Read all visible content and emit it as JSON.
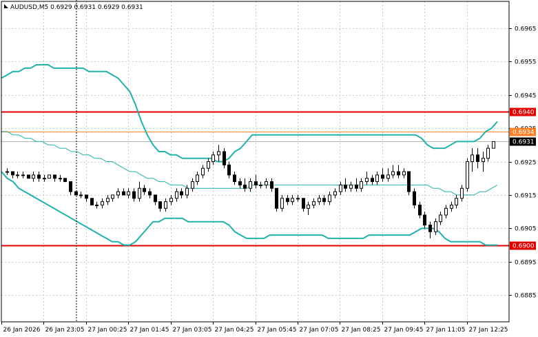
{
  "chart_data": {
    "type": "candlestick",
    "title": "AUDUSD,M5 0.6929 0.6931 0.6929 0.6931",
    "symbol": "AUDUSD",
    "timeframe": "M5",
    "ohlc_header": {
      "open": 0.6929,
      "high": 0.6931,
      "low": 0.6929,
      "close": 0.6931
    },
    "ylim": [
      0.6877,
      0.6973
    ],
    "y_ticks": [
      "0.6965",
      "0.6955",
      "0.6945",
      "0.6935",
      "0.6925",
      "0.6915",
      "0.6905",
      "0.6895",
      "0.6885"
    ],
    "x_ticks": [
      "26 Jan 2026",
      "26 Jan 23:05",
      "27 Jan 00:25",
      "27 Jan 01:45",
      "27 Jan 03:05",
      "27 Jan 04:25",
      "27 Jan 05:45",
      "27 Jan 07:05",
      "27 Jan 08:25",
      "27 Jan 09:45",
      "27 Jan 11:05",
      "27 Jan 12:25"
    ],
    "grid": true,
    "levels": [
      {
        "value": 0.694,
        "label": "0.6940",
        "color": "#e00000"
      },
      {
        "value": 0.6934,
        "label": "0.6934",
        "color": "#ff7f27"
      },
      {
        "value": 0.69,
        "label": "0.6900",
        "color": "#e00000"
      }
    ],
    "current_price": {
      "value": 0.6931,
      "label": "0.6931"
    },
    "bollinger": {
      "color": "#20b2aa",
      "upper": [
        0.695,
        0.6951,
        0.6952,
        0.6952,
        0.6953,
        0.6953,
        0.6954,
        0.6954,
        0.6954,
        0.6953,
        0.6953,
        0.6953,
        0.6953,
        0.6953,
        0.6953,
        0.6952,
        0.6952,
        0.6952,
        0.6952,
        0.6951,
        0.695,
        0.6948,
        0.6946,
        0.6942,
        0.6937,
        0.6933,
        0.693,
        0.6928,
        0.6928,
        0.6927,
        0.6927,
        0.6926,
        0.6926,
        0.6926,
        0.6926,
        0.6926,
        0.6926,
        0.6925,
        0.6925,
        0.6926,
        0.6928,
        0.6929,
        0.6931,
        0.6933,
        0.6933,
        0.6933,
        0.6933,
        0.6933,
        0.6933,
        0.6933,
        0.6933,
        0.6933,
        0.6933,
        0.6933,
        0.6933,
        0.6933,
        0.6933,
        0.6933,
        0.6933,
        0.6933,
        0.6933,
        0.6933,
        0.6933,
        0.6933,
        0.6933,
        0.6933,
        0.6933,
        0.6933,
        0.6933,
        0.6933,
        0.6933,
        0.6933,
        0.6932,
        0.693,
        0.6929,
        0.6929,
        0.6929,
        0.693,
        0.6931,
        0.6931,
        0.6931,
        0.6931,
        0.6932,
        0.6934,
        0.6935,
        0.6937
      ],
      "middle": [
        0.6934,
        0.6934,
        0.6933,
        0.6933,
        0.6932,
        0.6932,
        0.6931,
        0.6931,
        0.693,
        0.693,
        0.6929,
        0.6929,
        0.6928,
        0.6928,
        0.6927,
        0.6927,
        0.6926,
        0.6926,
        0.6925,
        0.6925,
        0.6924,
        0.6923,
        0.6922,
        0.6922,
        0.6921,
        0.692,
        0.692,
        0.6919,
        0.6919,
        0.6918,
        0.6918,
        0.6918,
        0.6917,
        0.6917,
        0.6917,
        0.6917,
        0.6917,
        0.6917,
        0.6917,
        0.6917,
        0.6917,
        0.6917,
        0.6917,
        0.6918,
        0.6918,
        0.6918,
        0.6918,
        0.6918,
        0.6918,
        0.6918,
        0.6918,
        0.6918,
        0.6918,
        0.6918,
        0.6918,
        0.6918,
        0.6918,
        0.6918,
        0.6918,
        0.6918,
        0.6918,
        0.6918,
        0.6918,
        0.6918,
        0.6918,
        0.6918,
        0.6918,
        0.6918,
        0.6918,
        0.6918,
        0.6918,
        0.6918,
        0.6918,
        0.6918,
        0.6917,
        0.6917,
        0.6916,
        0.6916,
        0.6915,
        0.6915,
        0.6915,
        0.6915,
        0.6916,
        0.6916,
        0.6917,
        0.6918
      ],
      "lower": [
        0.6922,
        0.692,
        0.6919,
        0.6917,
        0.6916,
        0.6915,
        0.6914,
        0.6913,
        0.6912,
        0.6911,
        0.691,
        0.6909,
        0.6908,
        0.6907,
        0.6906,
        0.6905,
        0.6904,
        0.6903,
        0.6902,
        0.6901,
        0.6901,
        0.69,
        0.69,
        0.6901,
        0.6903,
        0.6905,
        0.6907,
        0.6907,
        0.6908,
        0.6908,
        0.6908,
        0.6908,
        0.6907,
        0.6907,
        0.6907,
        0.6907,
        0.6907,
        0.6907,
        0.6907,
        0.6906,
        0.6904,
        0.6903,
        0.6902,
        0.6902,
        0.6902,
        0.6902,
        0.6903,
        0.6903,
        0.6903,
        0.6903,
        0.6903,
        0.6903,
        0.6903,
        0.6903,
        0.6903,
        0.6903,
        0.6902,
        0.6902,
        0.6902,
        0.6902,
        0.6902,
        0.6902,
        0.6902,
        0.6903,
        0.6903,
        0.6903,
        0.6903,
        0.6903,
        0.6903,
        0.6903,
        0.6903,
        0.6904,
        0.6905,
        0.6905,
        0.6905,
        0.6904,
        0.6902,
        0.6901,
        0.6901,
        0.6901,
        0.6901,
        0.6901,
        0.6901,
        0.69,
        0.69,
        0.69
      ]
    },
    "candles": [
      [
        0.6922,
        0.6923,
        0.6921,
        0.6922
      ],
      [
        0.6922,
        0.6922,
        0.692,
        0.6921
      ],
      [
        0.6921,
        0.6922,
        0.692,
        0.6921
      ],
      [
        0.6921,
        0.6922,
        0.692,
        0.6921
      ],
      [
        0.6921,
        0.6921,
        0.692,
        0.692
      ],
      [
        0.692,
        0.6922,
        0.6919,
        0.6921
      ],
      [
        0.6921,
        0.6922,
        0.6919,
        0.692
      ],
      [
        0.692,
        0.6921,
        0.6919,
        0.692
      ],
      [
        0.692,
        0.6921,
        0.692,
        0.6921
      ],
      [
        0.6921,
        0.6921,
        0.6919,
        0.692
      ],
      [
        0.692,
        0.6921,
        0.6919,
        0.692
      ],
      [
        0.692,
        0.692,
        0.6919,
        0.6919
      ],
      [
        0.6919,
        0.6919,
        0.6915,
        0.6916
      ],
      [
        0.6916,
        0.6916,
        0.6915,
        0.6915
      ],
      [
        0.6915,
        0.6916,
        0.6914,
        0.6915
      ],
      [
        0.6915,
        0.6915,
        0.6913,
        0.6914
      ],
      [
        0.6914,
        0.6914,
        0.6912,
        0.6912
      ],
      [
        0.6912,
        0.6913,
        0.6911,
        0.6912
      ],
      [
        0.6912,
        0.6914,
        0.6911,
        0.6913
      ],
      [
        0.6913,
        0.6915,
        0.6912,
        0.6914
      ],
      [
        0.6914,
        0.6915,
        0.6913,
        0.6915
      ],
      [
        0.6915,
        0.6917,
        0.6914,
        0.6916
      ],
      [
        0.6916,
        0.6917,
        0.6915,
        0.6915
      ],
      [
        0.6915,
        0.6917,
        0.6914,
        0.6916
      ],
      [
        0.6916,
        0.6917,
        0.6913,
        0.6914
      ],
      [
        0.6914,
        0.6919,
        0.6913,
        0.6917
      ],
      [
        0.6917,
        0.6918,
        0.6915,
        0.6916
      ],
      [
        0.6916,
        0.6917,
        0.6914,
        0.6915
      ],
      [
        0.6915,
        0.6915,
        0.6912,
        0.6913
      ],
      [
        0.6913,
        0.6913,
        0.691,
        0.6911
      ],
      [
        0.6911,
        0.6914,
        0.691,
        0.6913
      ],
      [
        0.6913,
        0.6915,
        0.6912,
        0.6914
      ],
      [
        0.6914,
        0.6917,
        0.6913,
        0.6916
      ],
      [
        0.6916,
        0.6917,
        0.6914,
        0.6915
      ],
      [
        0.6915,
        0.6918,
        0.6914,
        0.6917
      ],
      [
        0.6917,
        0.692,
        0.6916,
        0.6919
      ],
      [
        0.6919,
        0.6922,
        0.6918,
        0.6921
      ],
      [
        0.6921,
        0.6924,
        0.692,
        0.6923
      ],
      [
        0.6923,
        0.6926,
        0.6922,
        0.6925
      ],
      [
        0.6925,
        0.6928,
        0.6924,
        0.6927
      ],
      [
        0.6927,
        0.693,
        0.6925,
        0.6928
      ],
      [
        0.6928,
        0.6929,
        0.6923,
        0.6924
      ],
      [
        0.6924,
        0.6925,
        0.692,
        0.6921
      ],
      [
        0.6921,
        0.6922,
        0.6918,
        0.6919
      ],
      [
        0.6919,
        0.692,
        0.6917,
        0.6918
      ],
      [
        0.6918,
        0.692,
        0.6916,
        0.6917
      ],
      [
        0.6917,
        0.692,
        0.6916,
        0.6919
      ],
      [
        0.6919,
        0.6921,
        0.6917,
        0.6918
      ],
      [
        0.6918,
        0.6919,
        0.6917,
        0.6918
      ],
      [
        0.6918,
        0.692,
        0.6917,
        0.6919
      ],
      [
        0.6919,
        0.692,
        0.6916,
        0.6917
      ],
      [
        0.6917,
        0.6917,
        0.691,
        0.6911
      ],
      [
        0.6911,
        0.6915,
        0.691,
        0.6914
      ],
      [
        0.6914,
        0.6915,
        0.6912,
        0.6913
      ],
      [
        0.6913,
        0.6915,
        0.6912,
        0.6914
      ],
      [
        0.6914,
        0.6915,
        0.6913,
        0.6914
      ],
      [
        0.6914,
        0.6914,
        0.691,
        0.6911
      ],
      [
        0.6911,
        0.6913,
        0.6909,
        0.6912
      ],
      [
        0.6912,
        0.6914,
        0.6911,
        0.6913
      ],
      [
        0.6913,
        0.6915,
        0.6912,
        0.6914
      ],
      [
        0.6914,
        0.6915,
        0.6912,
        0.6913
      ],
      [
        0.6913,
        0.6916,
        0.6912,
        0.6915
      ],
      [
        0.6915,
        0.6917,
        0.6914,
        0.6916
      ],
      [
        0.6916,
        0.6919,
        0.6915,
        0.6918
      ],
      [
        0.6918,
        0.692,
        0.6916,
        0.6917
      ],
      [
        0.6917,
        0.6919,
        0.6916,
        0.6918
      ],
      [
        0.6918,
        0.692,
        0.6916,
        0.6917
      ],
      [
        0.6917,
        0.692,
        0.6916,
        0.6919
      ],
      [
        0.6919,
        0.6922,
        0.6918,
        0.692
      ],
      [
        0.692,
        0.6921,
        0.6918,
        0.6919
      ],
      [
        0.6919,
        0.6922,
        0.6918,
        0.6921
      ],
      [
        0.6921,
        0.6923,
        0.6919,
        0.692
      ],
      [
        0.692,
        0.6923,
        0.6919,
        0.6921
      ],
      [
        0.6921,
        0.6924,
        0.692,
        0.6922
      ],
      [
        0.6922,
        0.6924,
        0.692,
        0.6921
      ],
      [
        0.6921,
        0.6923,
        0.692,
        0.6922
      ],
      [
        0.6922,
        0.6922,
        0.6915,
        0.6916
      ],
      [
        0.6916,
        0.6917,
        0.6911,
        0.6912
      ],
      [
        0.6912,
        0.6913,
        0.6908,
        0.6909
      ],
      [
        0.6909,
        0.691,
        0.6905,
        0.6906
      ],
      [
        0.6906,
        0.6907,
        0.6902,
        0.6904
      ],
      [
        0.6904,
        0.6908,
        0.6903,
        0.6907
      ],
      [
        0.6907,
        0.691,
        0.6906,
        0.6909
      ],
      [
        0.6909,
        0.6912,
        0.6908,
        0.6911
      ],
      [
        0.6911,
        0.6913,
        0.691,
        0.6912
      ],
      [
        0.6912,
        0.6915,
        0.6911,
        0.6914
      ],
      [
        0.6914,
        0.6918,
        0.6913,
        0.6917
      ],
      [
        0.6917,
        0.6926,
        0.6916,
        0.6925
      ],
      [
        0.6925,
        0.6929,
        0.6922,
        0.6927
      ],
      [
        0.6927,
        0.6929,
        0.6923,
        0.6925
      ],
      [
        0.6925,
        0.6928,
        0.6922,
        0.6926
      ],
      [
        0.6926,
        0.693,
        0.6925,
        0.6929
      ],
      [
        0.6929,
        0.6931,
        0.6929,
        0.6931
      ]
    ]
  }
}
